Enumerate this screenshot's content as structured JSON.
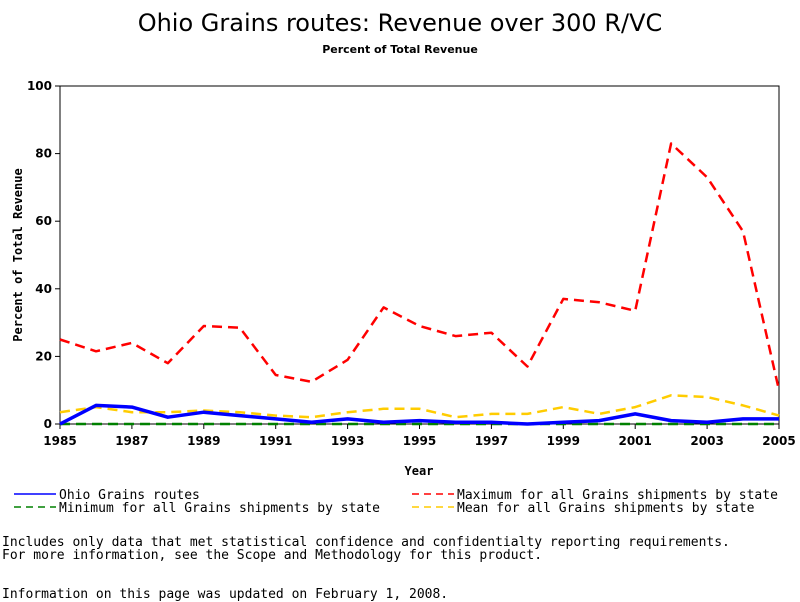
{
  "chart_data": {
    "type": "line",
    "title": "Ohio Grains routes: Revenue over 300 R/VC",
    "subtitle": "Percent of Total Revenue",
    "xlabel": "Year",
    "ylabel": "Percent of Total Revenue",
    "xlim": [
      1985,
      2005
    ],
    "ylim": [
      0,
      100
    ],
    "x_ticks": [
      1985,
      1987,
      1989,
      1991,
      1993,
      1995,
      1997,
      1999,
      2001,
      2003,
      2005
    ],
    "y_ticks": [
      0,
      20,
      40,
      60,
      80,
      100
    ],
    "x": [
      1985,
      1986,
      1987,
      1988,
      1989,
      1990,
      1991,
      1992,
      1993,
      1994,
      1995,
      1996,
      1997,
      1998,
      1999,
      2000,
      2001,
      2002,
      2003,
      2004,
      2005
    ],
    "grid": false,
    "legend_position": "bottom",
    "series": [
      {
        "name": "Ohio Grains routes",
        "color": "#0000ff",
        "dash": "solid",
        "values": [
          0,
          5.5,
          5,
          2,
          3.5,
          2.5,
          1.5,
          0.5,
          1.5,
          0.5,
          1,
          0.5,
          0.5,
          0,
          0.5,
          1,
          3,
          1,
          0.5,
          1.5,
          1.5
        ]
      },
      {
        "name": "Maximum for all Grains shipments by state",
        "color": "#ff0000",
        "dash": "dashed",
        "values": [
          25,
          21.5,
          24,
          18,
          29,
          28.5,
          14.5,
          12.5,
          19,
          34.5,
          29,
          26,
          27,
          17,
          37,
          36,
          33.5,
          83,
          73,
          57,
          10
        ]
      },
      {
        "name": "Minimum for all Grains shipments by state",
        "color": "#008000",
        "dash": "dashed",
        "values": [
          0,
          0,
          0,
          0,
          0,
          0,
          0,
          0,
          0,
          0,
          0,
          0,
          0,
          0,
          0,
          0,
          0,
          0,
          0,
          0,
          0
        ]
      },
      {
        "name": "Mean for all Grains shipments by state",
        "color": "#ffcc00",
        "dash": "dashed",
        "values": [
          3.5,
          5,
          3.5,
          3.5,
          4,
          3.5,
          2.5,
          2,
          3.5,
          4.5,
          4.5,
          2,
          3,
          3,
          5,
          3,
          5,
          8.5,
          8,
          5.5,
          2.5
        ]
      }
    ]
  },
  "notes": {
    "line1": "Includes only data that met statistical confidence and confidentialty reporting requirements.",
    "line2": "For more information, see the Scope and Methodology for this product.",
    "updated": "Information on this page was updated on February 1, 2008."
  }
}
